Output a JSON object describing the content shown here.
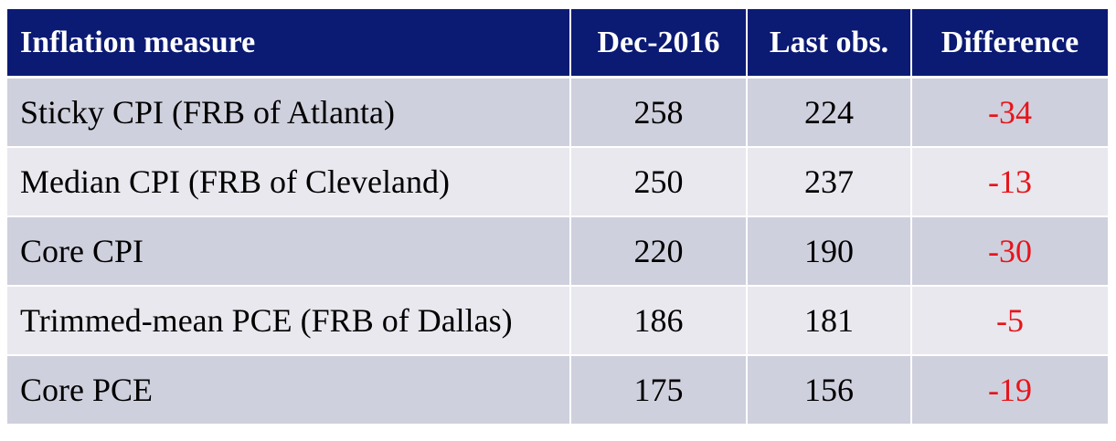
{
  "table": {
    "headers": {
      "measure": "Inflation measure",
      "dec2016": "Dec-2016",
      "last_obs": "Last obs.",
      "difference": "Difference"
    },
    "rows": [
      {
        "measure": "Sticky CPI (FRB of Atlanta)",
        "dec2016": "258",
        "last_obs": "224",
        "difference": "-34"
      },
      {
        "measure": "Median CPI (FRB of Cleveland)",
        "dec2016": "250",
        "last_obs": "237",
        "difference": "-13"
      },
      {
        "measure": "Core CPI",
        "dec2016": "220",
        "last_obs": "190",
        "difference": "-30"
      },
      {
        "measure": "Trimmed-mean PCE (FRB of Dallas)",
        "dec2016": "186",
        "last_obs": "181",
        "difference": "-5"
      },
      {
        "measure": "Core PCE",
        "dec2016": "175",
        "last_obs": "156",
        "difference": "-19"
      }
    ]
  },
  "colors": {
    "header_bg": "#0b1a73",
    "row_odd_bg": "#cfd0dd",
    "row_even_bg": "#e8e8ee",
    "difference_text": "#e8141b"
  }
}
